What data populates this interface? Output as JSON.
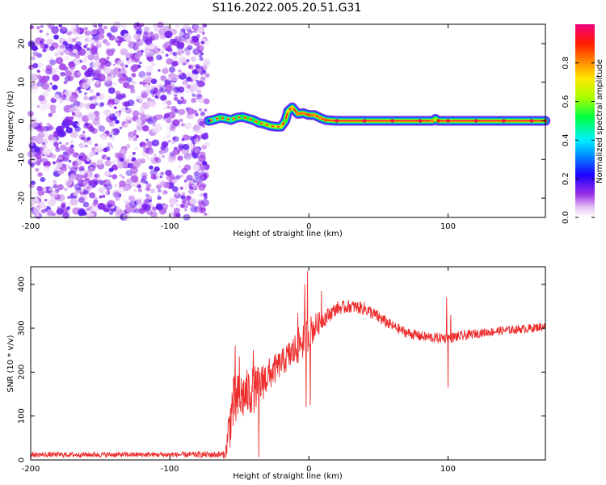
{
  "figure_title": "S116.2022.005.20.51.G31",
  "chart_data": [
    {
      "type": "heatmap",
      "title": "",
      "xlabel": "Height of straight line (km)",
      "ylabel": "Frequency (Hz)",
      "xlim": [
        -200,
        170
      ],
      "ylim": [
        -25,
        25
      ],
      "xticks": [
        -200,
        -100,
        0,
        100
      ],
      "xtick_labels": [
        "-200",
        "-100",
        "0",
        "100"
      ],
      "yticks": [
        -20,
        -10,
        0,
        10,
        20
      ],
      "ytick_labels": [
        "-20",
        "-10",
        "0",
        "10",
        "20"
      ],
      "noise_region_x": [
        -200,
        -73
      ],
      "noise_amplitude_range": [
        0.02,
        0.18
      ],
      "signal_trace": {
        "x": [
          -72,
          -68,
          -64,
          -60,
          -56,
          -52,
          -48,
          -44,
          -40,
          -36,
          -32,
          -28,
          -24,
          -20,
          -17,
          -15,
          -12,
          -8,
          -4,
          0,
          4,
          8,
          12,
          20,
          40,
          60,
          80,
          89,
          91,
          93,
          100,
          120,
          140,
          160,
          170
        ],
        "y": [
          0,
          0.3,
          0.8,
          0.6,
          0.2,
          0.8,
          1.0,
          0.6,
          0.2,
          -0.5,
          -0.8,
          -1.3,
          -1.5,
          -1.5,
          0,
          2.5,
          3.5,
          1.8,
          2.0,
          1.5,
          1.5,
          0.8,
          0.2,
          0,
          0,
          0,
          0,
          0,
          0.5,
          0,
          0,
          0,
          0,
          0,
          0
        ],
        "amplitude": [
          0.25,
          0.4,
          0.5,
          0.45,
          0.45,
          0.5,
          0.5,
          0.55,
          0.5,
          0.55,
          0.6,
          0.6,
          0.65,
          0.65,
          0.55,
          0.7,
          0.75,
          0.8,
          0.8,
          0.85,
          0.8,
          0.8,
          0.85,
          0.95,
          0.95,
          0.95,
          0.95,
          0.8,
          0.6,
          0.9,
          0.95,
          0.95,
          0.95,
          0.95,
          0.95
        ]
      },
      "colorbar": {
        "label": "Normalized spectral amplitude",
        "range": [
          0,
          1
        ],
        "ticks": [
          0.0,
          0.2,
          0.4,
          0.6,
          0.8
        ],
        "tick_labels": [
          "0.0",
          "0.2",
          "0.4",
          "0.6",
          "0.8"
        ],
        "colormap": "rainbow-white"
      }
    },
    {
      "type": "line",
      "title": "",
      "xlabel": "Height of straight line (km)",
      "ylabel": "SNR (10 * v/v)",
      "xlim": [
        -200,
        170
      ],
      "ylim": [
        0,
        440
      ],
      "xticks": [
        -200,
        -100,
        0,
        100
      ],
      "xtick_labels": [
        "-200",
        "-100",
        "0",
        "100"
      ],
      "yticks": [
        0,
        100,
        200,
        300,
        400
      ],
      "ytick_labels": [
        "0",
        "100",
        "200",
        "300",
        "400"
      ],
      "color": "#ee2c2c",
      "envelope": {
        "x": [
          -200,
          -100,
          -60,
          -58,
          -55,
          -50,
          -45,
          -40,
          -35,
          -30,
          -20,
          -15,
          -10,
          -5,
          0,
          10,
          20,
          30,
          40,
          50,
          60,
          70,
          80,
          90,
          100,
          110,
          120,
          140,
          160,
          170
        ],
        "y": [
          12,
          12,
          12,
          60,
          120,
          140,
          150,
          160,
          170,
          190,
          220,
          235,
          250,
          270,
          290,
          320,
          345,
          350,
          345,
          325,
          305,
          290,
          282,
          278,
          278,
          282,
          288,
          295,
          300,
          305
        ],
        "noise": [
          6,
          6,
          8,
          50,
          70,
          60,
          55,
          55,
          45,
          40,
          30,
          35,
          40,
          45,
          40,
          20,
          15,
          15,
          15,
          15,
          12,
          12,
          12,
          12,
          12,
          12,
          10,
          10,
          10,
          10
        ]
      },
      "spikes": [
        {
          "x": -53,
          "y": 260
        },
        {
          "x": -50,
          "y": 235
        },
        {
          "x": -40,
          "y": 250
        },
        {
          "x": -36,
          "y": 5
        },
        {
          "x": -33,
          "y": 215
        },
        {
          "x": -28,
          "y": 185
        },
        {
          "x": -8,
          "y": 335
        },
        {
          "x": -3,
          "y": 400
        },
        {
          "x": -2,
          "y": 120
        },
        {
          "x": -1,
          "y": 430
        },
        {
          "x": 1,
          "y": 125
        },
        {
          "x": 9,
          "y": 385
        },
        {
          "x": 99,
          "y": 370
        },
        {
          "x": 100,
          "y": 165
        },
        {
          "x": 102,
          "y": 330
        }
      ]
    }
  ]
}
